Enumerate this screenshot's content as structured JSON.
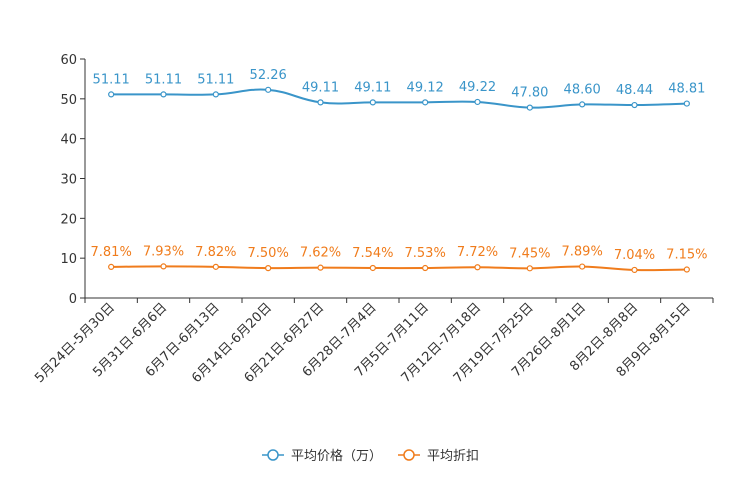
{
  "chart_data": {
    "type": "line",
    "categories": [
      "5月24日-5月30日",
      "5月31日-6月6日",
      "6月7日-6月13日",
      "6月14日-6月20日",
      "6月21日-6月27日",
      "6月28日-7月4日",
      "7月5日-7月11日",
      "7月12日-7月18日",
      "7月19日-7月25日",
      "7月26日-8月1日",
      "8月2日-8月8日",
      "8月9日-8月15日"
    ],
    "ylim": [
      0,
      60
    ],
    "yticks": [
      0,
      10,
      20,
      30,
      40,
      50,
      60
    ],
    "legend_position": "bottom-center",
    "series": [
      {
        "name": "平均价格（万）",
        "color": "#3a95c9",
        "values": [
          51.11,
          51.11,
          51.11,
          52.26,
          49.11,
          49.11,
          49.12,
          49.22,
          47.8,
          48.6,
          48.44,
          48.81
        ],
        "labels": [
          "51.11",
          "51.11",
          "51.11",
          "52.26",
          "49.11",
          "49.11",
          "49.12",
          "49.22",
          "47.80",
          "48.60",
          "48.44",
          "48.81"
        ]
      },
      {
        "name": "平均折扣",
        "color": "#f07c1c",
        "values": [
          7.81,
          7.93,
          7.82,
          7.5,
          7.62,
          7.54,
          7.53,
          7.72,
          7.45,
          7.89,
          7.04,
          7.15
        ],
        "labels": [
          "7.81%",
          "7.93%",
          "7.82%",
          "7.50%",
          "7.62%",
          "7.54%",
          "7.53%",
          "7.72%",
          "7.45%",
          "7.89%",
          "7.04%",
          "7.15%"
        ]
      }
    ]
  }
}
